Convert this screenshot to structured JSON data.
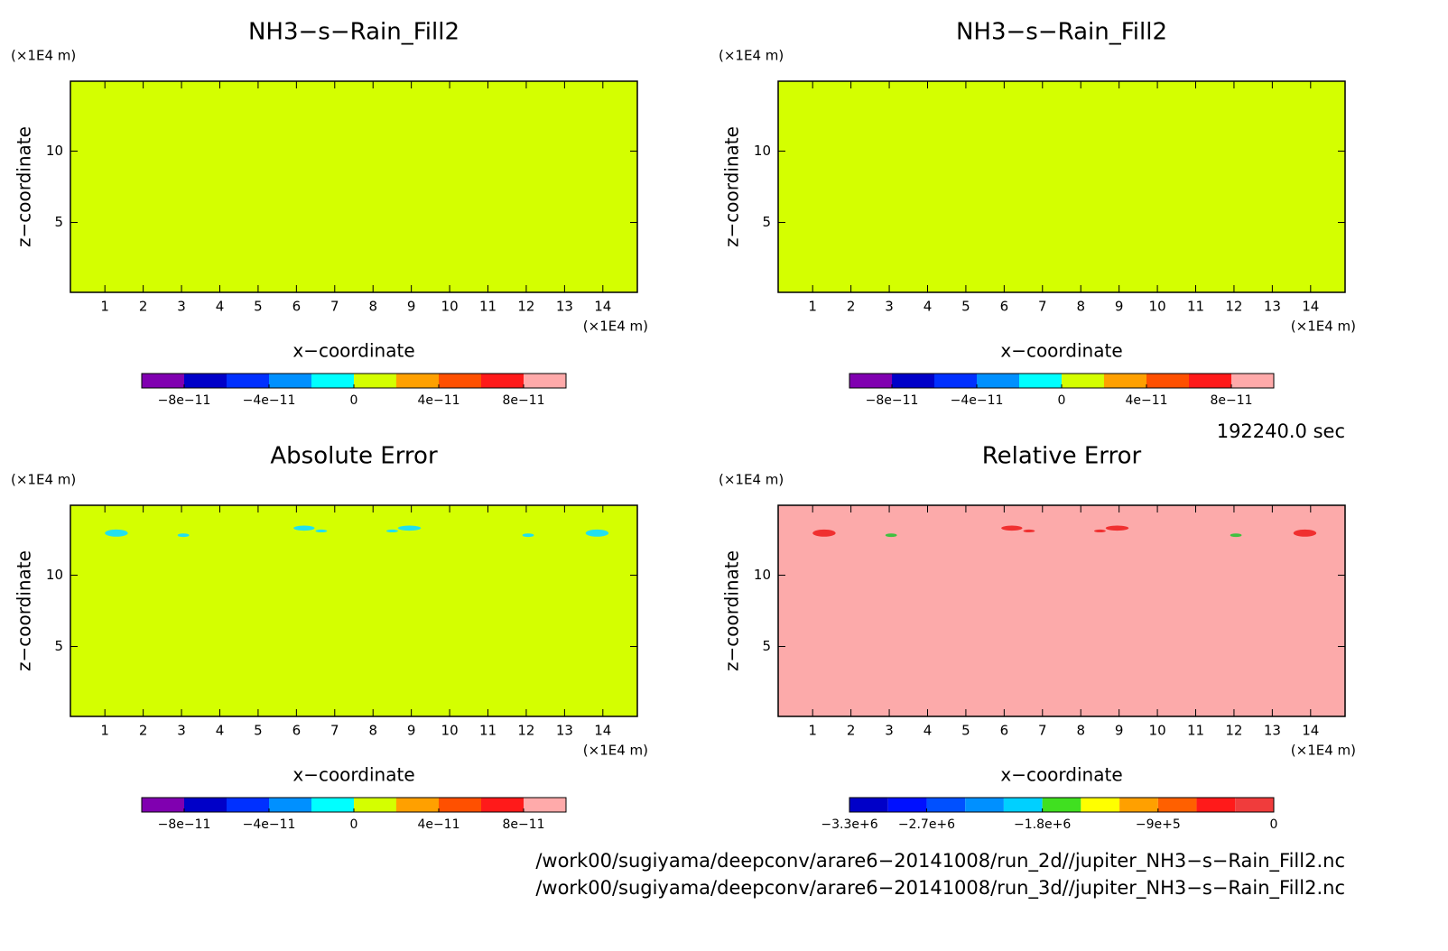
{
  "chart_data": [
    {
      "type": "contour",
      "title": "NH3−s−Rain_Fill2",
      "xlabel": "x−coordinate",
      "ylabel": "z−coordinate",
      "xunit": "(×1E4 m)",
      "yunit": "(×1E4 m)",
      "xlim": [
        0.1,
        14.9
      ],
      "ylim": [
        0.1,
        14.9
      ],
      "xticks": [
        1,
        2,
        3,
        4,
        5,
        6,
        7,
        8,
        9,
        10,
        11,
        12,
        13,
        14
      ],
      "yticks": [
        5,
        10
      ],
      "background": "#d4ff00",
      "colorbar": {
        "levels": [
          -1e-10,
          -8e-11,
          -6e-11,
          -4e-11,
          -2e-11,
          0,
          2e-11,
          4e-11,
          6e-11,
          8e-11,
          1e-10
        ],
        "colors": [
          "#8000b0",
          "#0000c8",
          "#0030ff",
          "#0090ff",
          "#00ffff",
          "#d4ff00",
          "#ffa000",
          "#ff5000",
          "#ff1a1a",
          "#ffaaaa"
        ],
        "ticks": [
          {
            "value": -8e-11,
            "label": "−8e−11"
          },
          {
            "value": -4e-11,
            "label": "−4e−11"
          },
          {
            "value": 0,
            "label": "0"
          },
          {
            "value": 4e-11,
            "label": "4e−11"
          },
          {
            "value": 8e-11,
            "label": "8e−11"
          }
        ]
      }
    },
    {
      "type": "contour",
      "title": "NH3−s−Rain_Fill2",
      "xlabel": "x−coordinate",
      "ylabel": "z−coordinate",
      "xunit": "(×1E4 m)",
      "yunit": "(×1E4 m)",
      "xlim": [
        0.1,
        14.9
      ],
      "ylim": [
        0.1,
        14.9
      ],
      "xticks": [
        1,
        2,
        3,
        4,
        5,
        6,
        7,
        8,
        9,
        10,
        11,
        12,
        13,
        14
      ],
      "yticks": [
        5,
        10
      ],
      "background": "#d4ff00",
      "colorbar": {
        "levels": [
          -1e-10,
          -8e-11,
          -6e-11,
          -4e-11,
          -2e-11,
          0,
          2e-11,
          4e-11,
          6e-11,
          8e-11,
          1e-10
        ],
        "colors": [
          "#8000b0",
          "#0000c8",
          "#0030ff",
          "#0090ff",
          "#00ffff",
          "#d4ff00",
          "#ffa000",
          "#ff5000",
          "#ff1a1a",
          "#ffaaaa"
        ],
        "ticks": [
          {
            "value": -8e-11,
            "label": "−8e−11"
          },
          {
            "value": -4e-11,
            "label": "−4e−11"
          },
          {
            "value": 0,
            "label": "0"
          },
          {
            "value": 4e-11,
            "label": "4e−11"
          },
          {
            "value": 8e-11,
            "label": "8e−11"
          }
        ]
      }
    },
    {
      "type": "contour",
      "title": "Absolute Error",
      "xlabel": "x−coordinate",
      "ylabel": "z−coordinate",
      "xunit": "(×1E4 m)",
      "yunit": "(×1E4 m)",
      "xlim": [
        0.1,
        14.9
      ],
      "ylim": [
        0.1,
        14.9
      ],
      "xticks": [
        1,
        2,
        3,
        4,
        5,
        6,
        7,
        8,
        9,
        10,
        11,
        12,
        13,
        14
      ],
      "yticks": [
        5,
        10
      ],
      "background": "#d4ff00",
      "patches": {
        "x": [
          1.3,
          3.05,
          6.2,
          6.65,
          8.95,
          8.5,
          12.05,
          13.85
        ],
        "y": [
          12.95,
          12.8,
          13.3,
          13.1,
          13.3,
          13.1,
          12.8,
          12.95
        ],
        "w": [
          0.6,
          0.3,
          0.55,
          0.3,
          0.6,
          0.3,
          0.3,
          0.6
        ],
        "h": [
          0.5,
          0.25,
          0.35,
          0.2,
          0.35,
          0.2,
          0.25,
          0.5
        ],
        "colors": [
          "#20e0f0",
          "#20e0f0",
          "#20e0f0",
          "#20e0f0",
          "#20e0f0",
          "#20e0f0",
          "#20e0f0",
          "#20e0f0"
        ]
      },
      "colorbar": {
        "levels": [
          -1e-10,
          -8e-11,
          -6e-11,
          -4e-11,
          -2e-11,
          0,
          2e-11,
          4e-11,
          6e-11,
          8e-11,
          1e-10
        ],
        "colors": [
          "#8000b0",
          "#0000c8",
          "#0030ff",
          "#0090ff",
          "#00ffff",
          "#d4ff00",
          "#ffa000",
          "#ff5000",
          "#ff1a1a",
          "#ffaaaa"
        ],
        "ticks": [
          {
            "value": -8e-11,
            "label": "−8e−11"
          },
          {
            "value": -4e-11,
            "label": "−4e−11"
          },
          {
            "value": 0,
            "label": "0"
          },
          {
            "value": 4e-11,
            "label": "4e−11"
          },
          {
            "value": 8e-11,
            "label": "8e−11"
          }
        ]
      }
    },
    {
      "type": "contour",
      "title": "Relative Error",
      "xlabel": "x−coordinate",
      "ylabel": "z−coordinate",
      "xunit": "(×1E4 m)",
      "yunit": "(×1E4 m)",
      "xlim": [
        0.1,
        14.9
      ],
      "ylim": [
        0.1,
        14.9
      ],
      "xticks": [
        1,
        2,
        3,
        4,
        5,
        6,
        7,
        8,
        9,
        10,
        11,
        12,
        13,
        14
      ],
      "yticks": [
        5,
        10
      ],
      "background": "#fcaaaa",
      "patches": {
        "x": [
          1.3,
          3.05,
          6.2,
          6.65,
          8.95,
          8.5,
          12.05,
          13.85
        ],
        "y": [
          12.95,
          12.8,
          13.3,
          13.1,
          13.3,
          13.1,
          12.8,
          12.95
        ],
        "w": [
          0.6,
          0.3,
          0.55,
          0.3,
          0.6,
          0.3,
          0.3,
          0.6
        ],
        "h": [
          0.5,
          0.25,
          0.35,
          0.2,
          0.35,
          0.2,
          0.25,
          0.5
        ],
        "colors": [
          "#f03030",
          "#40c040",
          "#f03030",
          "#f03030",
          "#f03030",
          "#f03030",
          "#40c040",
          "#f03030"
        ]
      },
      "colorbar": {
        "levels": [
          -3300000,
          -3000000,
          -2700000,
          -2400000,
          -2100000,
          -1800000,
          -1500000,
          -1200000,
          -900000,
          -600000,
          -300000,
          0
        ],
        "colors": [
          "#0000c8",
          "#0010ff",
          "#0050ff",
          "#0090ff",
          "#00d0ff",
          "#40e020",
          "#ffff00",
          "#ffa000",
          "#ff6000",
          "#ff1a1a",
          "#f03c3c"
        ],
        "ticks": [
          {
            "value": -3300000,
            "label": "−3.3e+6"
          },
          {
            "value": -2700000,
            "label": "−2.7e+6"
          },
          {
            "value": -1800000,
            "label": "−1.8e+6"
          },
          {
            "value": -900000,
            "label": "−9e+5"
          },
          {
            "value": 0,
            "label": "0"
          }
        ]
      }
    }
  ],
  "footer": {
    "time": "192240.0 sec",
    "files": [
      "/work00/sugiyama/deepconv/arare6−20141008/run_2d//jupiter_NH3−s−Rain_Fill2.nc",
      "/work00/sugiyama/deepconv/arare6−20141008/run_3d//jupiter_NH3−s−Rain_Fill2.nc"
    ]
  }
}
